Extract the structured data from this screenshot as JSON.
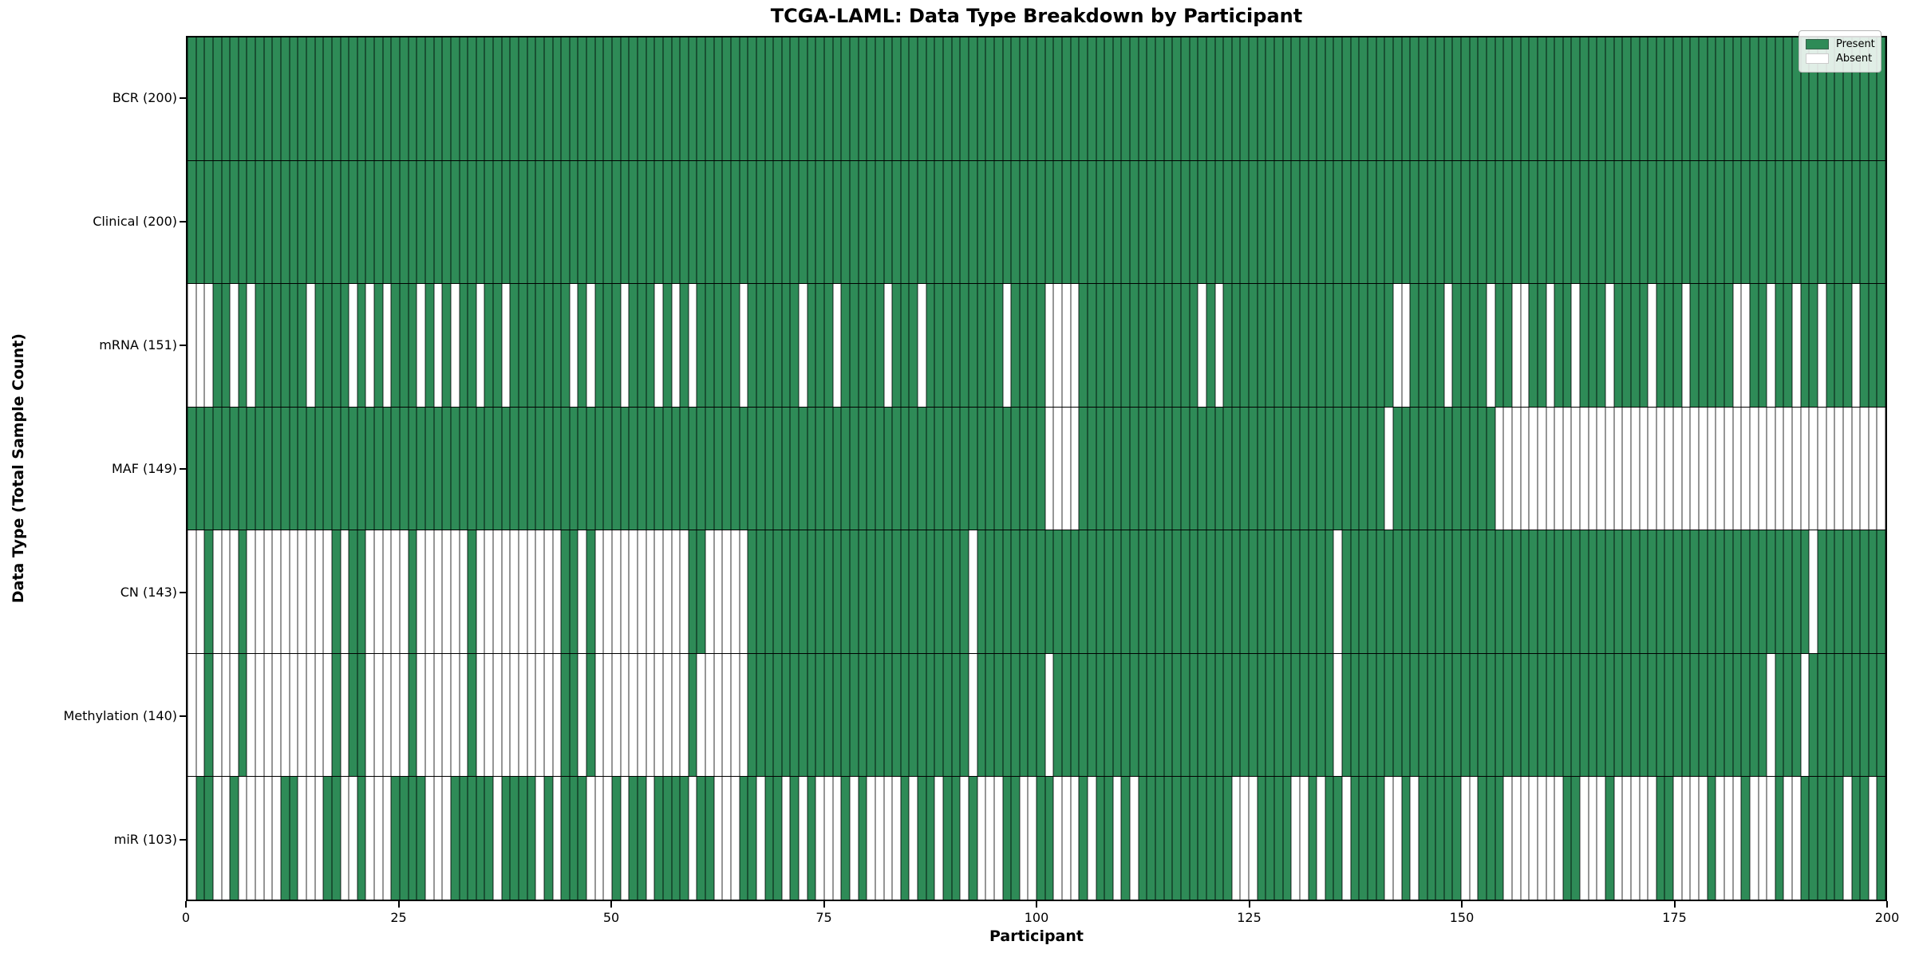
{
  "chart_data": {
    "type": "heatmap",
    "title": "TCGA-LAML: Data Type Breakdown by Participant",
    "xlabel": "Participant",
    "ylabel": "Data Type (Total Sample Count)",
    "n_participants": 200,
    "x_range": [
      0,
      200
    ],
    "x_ticks": [
      0,
      25,
      50,
      75,
      100,
      125,
      150,
      175,
      200
    ],
    "legend": {
      "position": "upper right",
      "present_label": "Present",
      "absent_label": "Absent"
    },
    "colors": {
      "present": "#2e8b57",
      "absent": "#ffffff",
      "present_edge": "rgba(10,35,22,0.55)",
      "absent_edge": "#969696",
      "row_divider": "#000000"
    },
    "rows": [
      {
        "name": "BCR",
        "label": "BCR (200)",
        "total": 200,
        "absent": []
      },
      {
        "name": "Clinical",
        "label": "Clinical (200)",
        "total": 200,
        "absent": []
      },
      {
        "name": "mRNA",
        "label": "mRNA (151)",
        "total": 151,
        "absent": [
          0,
          1,
          2,
          5,
          7,
          14,
          19,
          21,
          23,
          27,
          29,
          31,
          34,
          37,
          45,
          47,
          51,
          55,
          57,
          59,
          65,
          72,
          76,
          82,
          86,
          96,
          101,
          102,
          103,
          104,
          119,
          121,
          142,
          143,
          148,
          153,
          156,
          157,
          160,
          163,
          167,
          172,
          176,
          182,
          183,
          186,
          189,
          192,
          196
        ]
      },
      {
        "name": "MAF",
        "label": "MAF (149)",
        "total": 149,
        "absent": [
          101,
          102,
          103,
          104,
          141,
          154,
          155,
          156,
          157,
          158,
          159,
          160,
          161,
          162,
          163,
          164,
          165,
          166,
          167,
          168,
          169,
          170,
          171,
          172,
          173,
          174,
          175,
          176,
          177,
          178,
          179,
          180,
          181,
          182,
          183,
          184,
          185,
          186,
          187,
          188,
          189,
          190,
          191,
          192,
          193,
          194,
          195,
          196,
          197,
          198,
          199
        ]
      },
      {
        "name": "CN",
        "label": "CN (143)",
        "total": 143,
        "absent": [
          0,
          1,
          3,
          4,
          5,
          7,
          8,
          9,
          10,
          11,
          12,
          13,
          14,
          15,
          16,
          18,
          21,
          22,
          23,
          24,
          25,
          27,
          28,
          29,
          30,
          31,
          32,
          34,
          35,
          36,
          37,
          38,
          39,
          40,
          41,
          42,
          43,
          46,
          48,
          49,
          50,
          51,
          52,
          53,
          54,
          55,
          56,
          57,
          58,
          61,
          62,
          63,
          64,
          65,
          92,
          135,
          191
        ]
      },
      {
        "name": "Methylation",
        "label": "Methylation (140)",
        "total": 140,
        "absent": [
          0,
          1,
          3,
          4,
          5,
          7,
          8,
          9,
          10,
          11,
          12,
          13,
          14,
          15,
          16,
          18,
          21,
          22,
          23,
          24,
          25,
          27,
          28,
          29,
          30,
          31,
          32,
          34,
          35,
          36,
          37,
          38,
          39,
          40,
          41,
          42,
          43,
          46,
          48,
          49,
          50,
          51,
          52,
          53,
          54,
          55,
          56,
          57,
          58,
          60,
          61,
          62,
          63,
          64,
          65,
          92,
          101,
          135,
          186,
          190
        ]
      },
      {
        "name": "miR",
        "label": "miR (103)",
        "total": 103,
        "absent": [
          0,
          3,
          4,
          6,
          7,
          8,
          9,
          10,
          13,
          14,
          15,
          18,
          19,
          21,
          22,
          23,
          28,
          29,
          30,
          36,
          41,
          43,
          47,
          48,
          49,
          51,
          54,
          59,
          62,
          63,
          64,
          67,
          70,
          72,
          74,
          75,
          76,
          78,
          80,
          81,
          82,
          83,
          85,
          88,
          91,
          93,
          94,
          95,
          98,
          99,
          102,
          103,
          104,
          106,
          109,
          111,
          123,
          124,
          125,
          130,
          131,
          133,
          136,
          141,
          142,
          144,
          150,
          151,
          155,
          156,
          157,
          158,
          159,
          160,
          161,
          164,
          165,
          166,
          168,
          169,
          170,
          171,
          172,
          175,
          176,
          177,
          178,
          180,
          181,
          182,
          184,
          185,
          186,
          188,
          189,
          195,
          198
        ]
      }
    ]
  }
}
